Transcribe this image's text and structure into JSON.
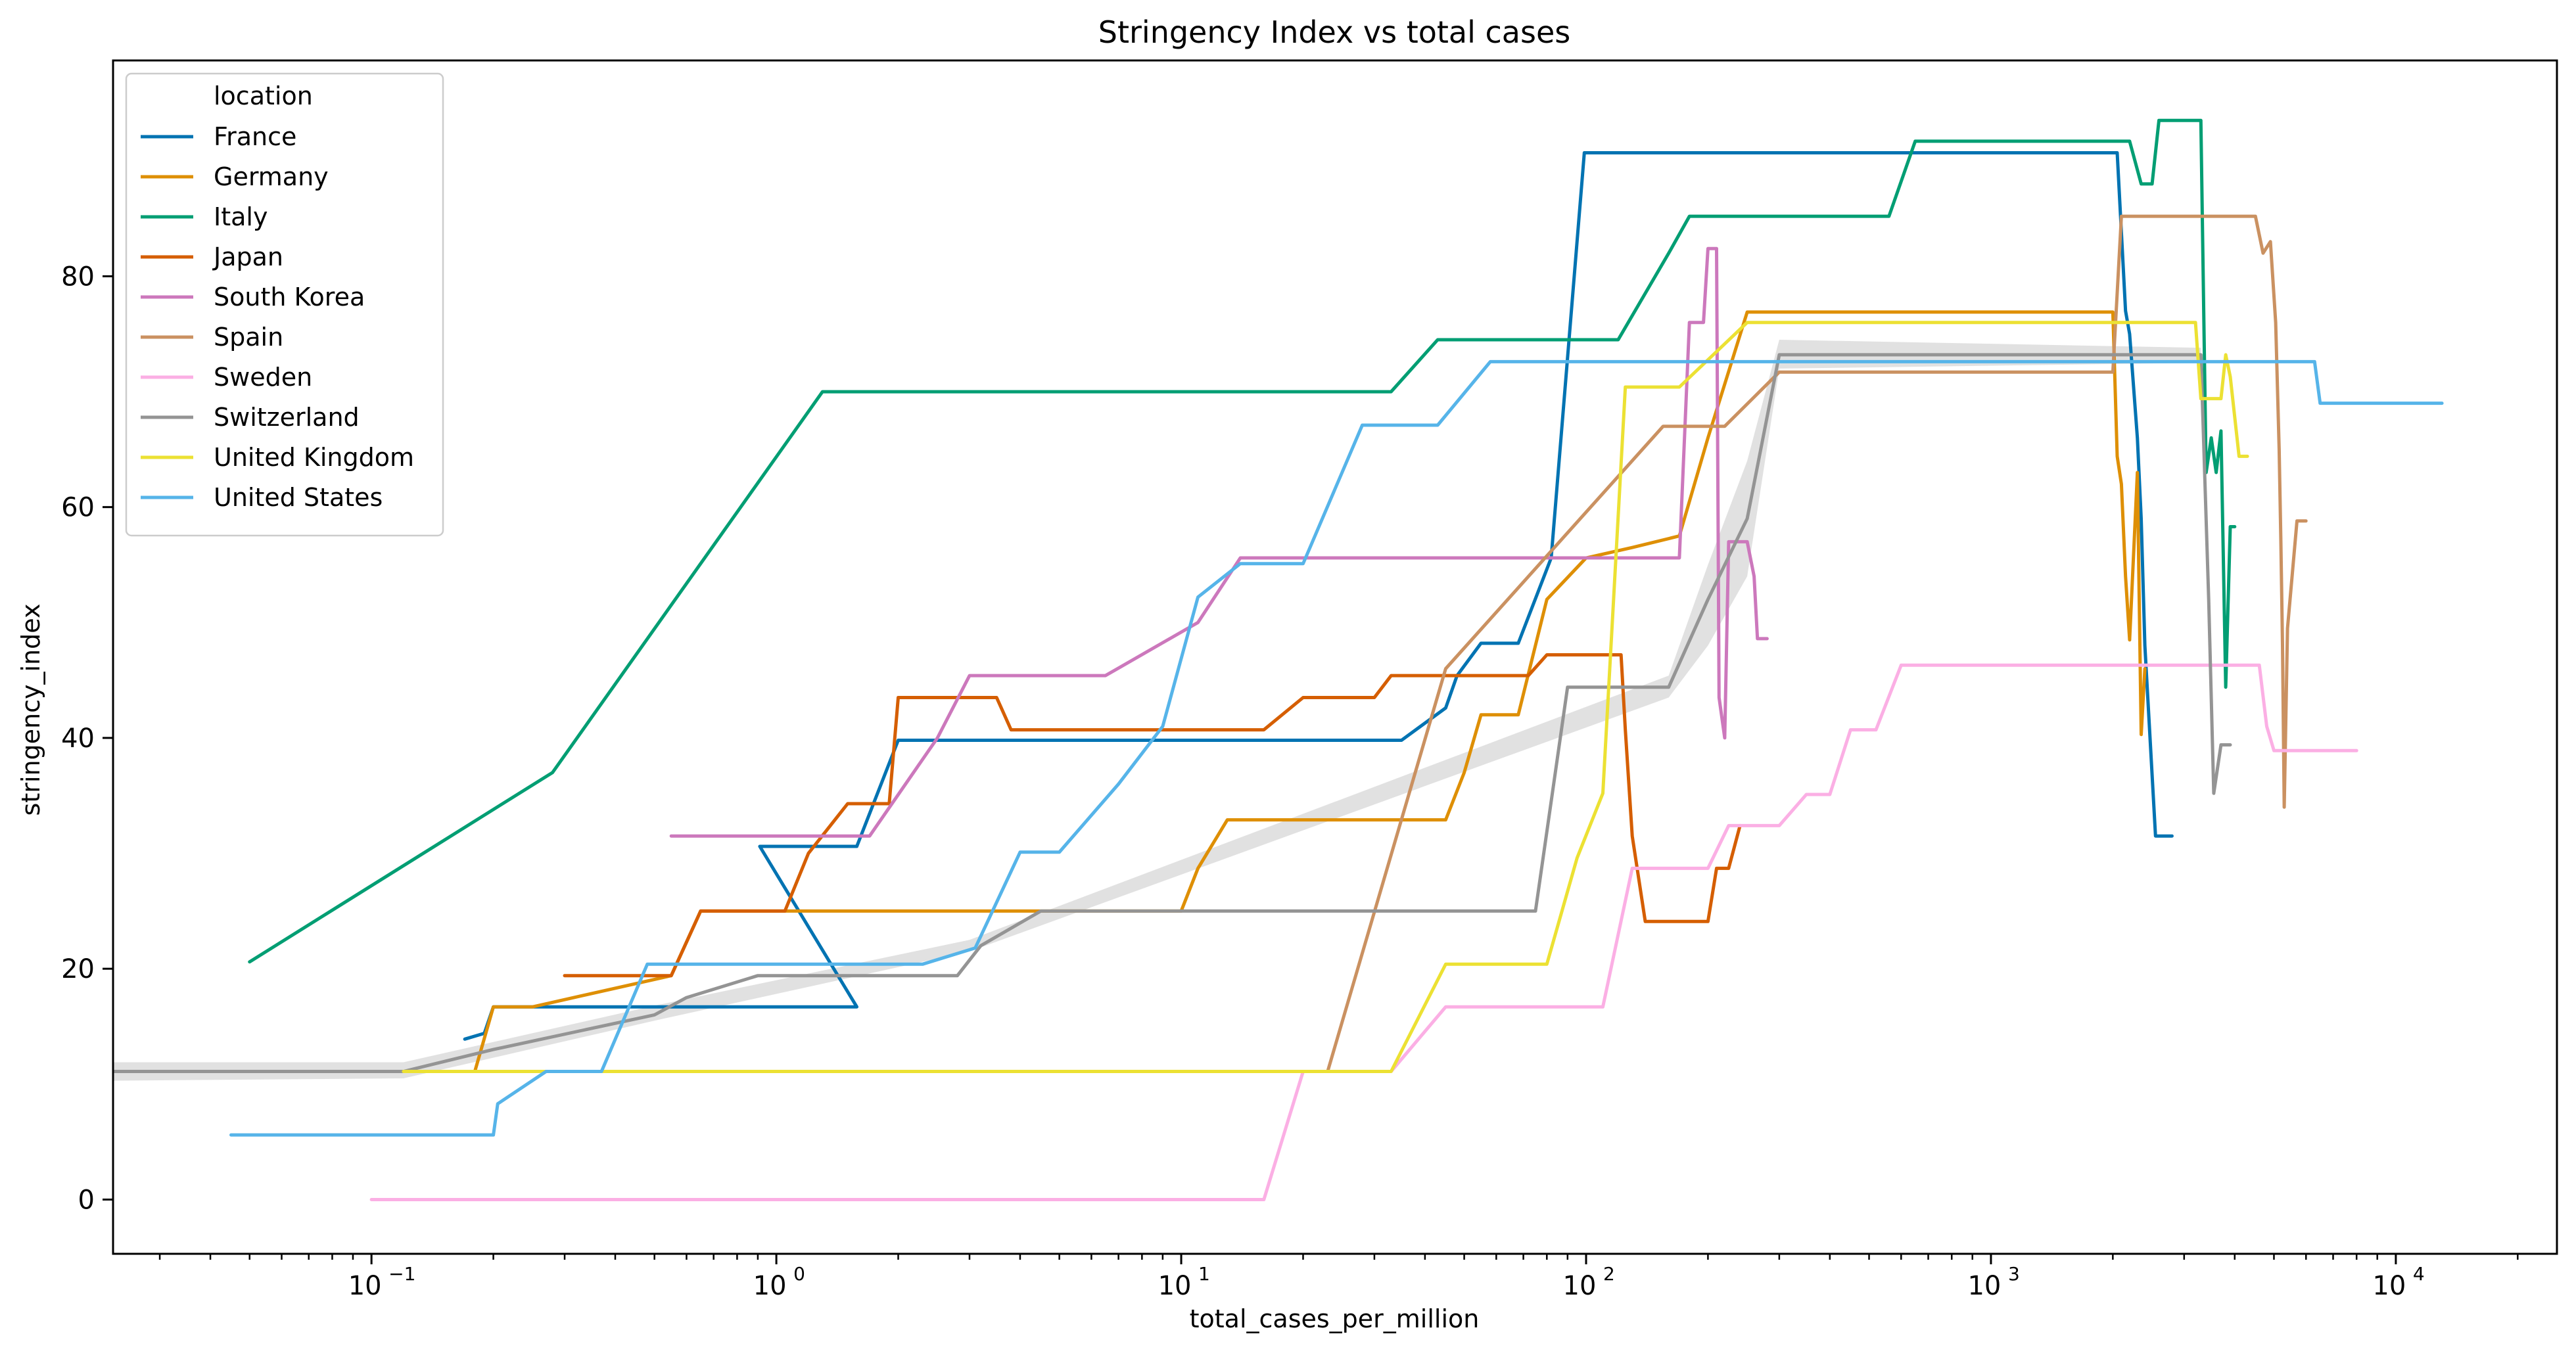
{
  "chart_data": {
    "type": "line",
    "title": "Stringency Index vs total cases",
    "xlabel": "total_cases_per_million",
    "ylabel": "stringency_index",
    "xscale": "log",
    "xlim": [
      0.023,
      25000
    ],
    "ylim": [
      -4.7,
      98.7
    ],
    "x_ticks": [
      {
        "value": 0.1,
        "base": "10",
        "exp": "−1"
      },
      {
        "value": 1,
        "base": "10",
        "exp": "0"
      },
      {
        "value": 10,
        "base": "10",
        "exp": "1"
      },
      {
        "value": 100,
        "base": "10",
        "exp": "2"
      },
      {
        "value": 1000,
        "base": "10",
        "exp": "3"
      },
      {
        "value": 10000,
        "base": "10",
        "exp": "4"
      }
    ],
    "y_ticks": [
      0,
      20,
      40,
      60,
      80
    ],
    "grid": false,
    "legend": {
      "title": "location",
      "placement": "top-left"
    },
    "series": [
      {
        "name": "France",
        "color": "#0173b2",
        "points": [
          [
            0.17,
            13.9
          ],
          [
            0.19,
            14.4
          ],
          [
            0.2,
            16.7
          ],
          [
            1.58,
            16.7
          ],
          [
            0.91,
            30.6
          ],
          [
            1.58,
            30.6
          ],
          [
            2,
            39.8
          ],
          [
            35,
            39.8
          ],
          [
            45,
            42.6
          ],
          [
            48,
            45.4
          ],
          [
            55,
            48.2
          ],
          [
            68,
            48.2
          ],
          [
            82,
            55.6
          ],
          [
            99,
            90.7
          ],
          [
            2050,
            90.7
          ],
          [
            2150,
            77.0
          ],
          [
            2200,
            75.0
          ],
          [
            2300,
            66.0
          ],
          [
            2350,
            59.0
          ],
          [
            2400,
            48.0
          ],
          [
            2550,
            31.5
          ],
          [
            2800,
            31.5
          ]
        ]
      },
      {
        "name": "Germany",
        "color": "#de8f05",
        "points": [
          [
            0.18,
            11.1
          ],
          [
            0.2,
            16.7
          ],
          [
            0.25,
            16.7
          ],
          [
            0.55,
            19.4
          ],
          [
            0.65,
            25.0
          ],
          [
            3.3,
            25.0
          ],
          [
            10,
            25.0
          ],
          [
            11,
            28.7
          ],
          [
            13,
            32.9
          ],
          [
            45,
            32.9
          ],
          [
            50,
            37.0
          ],
          [
            55,
            42.0
          ],
          [
            68,
            42.0
          ],
          [
            80,
            52.0
          ],
          [
            100,
            55.6
          ],
          [
            130,
            56.5
          ],
          [
            170,
            57.5
          ],
          [
            200,
            66.0
          ],
          [
            250,
            76.9
          ],
          [
            2000,
            76.9
          ],
          [
            2050,
            64.4
          ],
          [
            2100,
            62.0
          ],
          [
            2150,
            54.0
          ],
          [
            2200,
            48.5
          ],
          [
            2300,
            63.0
          ],
          [
            2350,
            40.3
          ],
          [
            2400,
            46.0
          ]
        ]
      },
      {
        "name": "Italy",
        "color": "#029e73",
        "points": [
          [
            0.05,
            20.6
          ],
          [
            0.28,
            37.0
          ],
          [
            1.3,
            70.0
          ],
          [
            33,
            70.0
          ],
          [
            43,
            74.5
          ],
          [
            120,
            74.5
          ],
          [
            160,
            82.0
          ],
          [
            180,
            85.2
          ],
          [
            560,
            85.2
          ],
          [
            650,
            91.7
          ],
          [
            2200,
            91.7
          ],
          [
            2350,
            88.0
          ],
          [
            2500,
            88.0
          ],
          [
            2600,
            93.5
          ],
          [
            3300,
            93.5
          ],
          [
            3400,
            63.0
          ],
          [
            3500,
            66.0
          ],
          [
            3600,
            63.0
          ],
          [
            3700,
            66.6
          ],
          [
            3800,
            44.4
          ],
          [
            3900,
            58.3
          ],
          [
            4000,
            58.3
          ]
        ]
      },
      {
        "name": "Japan",
        "color": "#d55e00",
        "points": [
          [
            0.3,
            19.4
          ],
          [
            0.55,
            19.4
          ],
          [
            0.65,
            25.0
          ],
          [
            1.05,
            25.0
          ],
          [
            1.2,
            30.0
          ],
          [
            1.5,
            34.3
          ],
          [
            1.9,
            34.3
          ],
          [
            2,
            43.5
          ],
          [
            3.5,
            43.5
          ],
          [
            3.8,
            40.7
          ],
          [
            16,
            40.7
          ],
          [
            20,
            43.5
          ],
          [
            30,
            43.5
          ],
          [
            33,
            45.4
          ],
          [
            72,
            45.4
          ],
          [
            80,
            47.2
          ],
          [
            122,
            47.2
          ],
          [
            125,
            40.7
          ],
          [
            130,
            31.5
          ],
          [
            140,
            24.1
          ],
          [
            200,
            24.1
          ],
          [
            210,
            28.7
          ],
          [
            225,
            28.7
          ],
          [
            240,
            32.4
          ]
        ]
      },
      {
        "name": "South Korea",
        "color": "#cc78bc",
        "points": [
          [
            0.55,
            31.5
          ],
          [
            1.7,
            31.5
          ],
          [
            2.5,
            40.0
          ],
          [
            3,
            45.4
          ],
          [
            6.5,
            45.4
          ],
          [
            11,
            50.0
          ],
          [
            14,
            55.6
          ],
          [
            170,
            55.6
          ],
          [
            180,
            76.0
          ],
          [
            195,
            76.0
          ],
          [
            200,
            82.4
          ],
          [
            210,
            82.4
          ],
          [
            213,
            43.5
          ],
          [
            220,
            40.0
          ],
          [
            225,
            57.0
          ],
          [
            250,
            57.0
          ],
          [
            260,
            54.0
          ],
          [
            265,
            48.6
          ],
          [
            280,
            48.6
          ]
        ]
      },
      {
        "name": "Spain",
        "color": "#ca9161",
        "points": [
          [
            0.12,
            11.1
          ],
          [
            23,
            11.1
          ],
          [
            45,
            46.0
          ],
          [
            155,
            67.0
          ],
          [
            180,
            67.0
          ],
          [
            220,
            67.0
          ],
          [
            300,
            71.7
          ],
          [
            2000,
            71.7
          ],
          [
            2100,
            85.2
          ],
          [
            4500,
            85.2
          ],
          [
            4700,
            82.0
          ],
          [
            4900,
            83.0
          ],
          [
            5050,
            76.0
          ],
          [
            5150,
            65.0
          ],
          [
            5200,
            57.0
          ],
          [
            5250,
            48.0
          ],
          [
            5300,
            34.0
          ],
          [
            5400,
            49.5
          ],
          [
            5700,
            58.8
          ],
          [
            6000,
            58.8
          ]
        ]
      },
      {
        "name": "Sweden",
        "color": "#fbafe4",
        "points": [
          [
            0.1,
            0.0
          ],
          [
            16,
            0.0
          ],
          [
            20,
            11.1
          ],
          [
            33,
            11.1
          ],
          [
            45,
            16.7
          ],
          [
            100,
            16.7
          ],
          [
            110,
            16.7
          ],
          [
            130,
            28.7
          ],
          [
            200,
            28.7
          ],
          [
            225,
            32.4
          ],
          [
            300,
            32.4
          ],
          [
            350,
            35.1
          ],
          [
            400,
            35.1
          ],
          [
            450,
            40.7
          ],
          [
            520,
            40.7
          ],
          [
            600,
            46.3
          ],
          [
            4600,
            46.3
          ],
          [
            4800,
            41.0
          ],
          [
            5000,
            38.9
          ],
          [
            8000,
            38.9
          ]
        ]
      },
      {
        "name": "Switzerland",
        "color": "#949494",
        "points": [
          [
            0.023,
            11.1
          ],
          [
            0.12,
            11.1
          ],
          [
            0.2,
            13.0
          ],
          [
            0.5,
            16.0
          ],
          [
            0.6,
            17.5
          ],
          [
            0.9,
            19.4
          ],
          [
            2.8,
            19.4
          ],
          [
            3.2,
            22.0
          ],
          [
            4.5,
            25.0
          ],
          [
            75,
            25.0
          ],
          [
            90,
            44.4
          ],
          [
            160,
            44.4
          ],
          [
            200,
            52.0
          ],
          [
            250,
            59.0
          ],
          [
            300,
            73.2
          ],
          [
            3300,
            73.2
          ],
          [
            3450,
            52.0
          ],
          [
            3550,
            35.2
          ],
          [
            3700,
            39.4
          ],
          [
            3900,
            39.4
          ]
        ]
      },
      {
        "name": "United Kingdom",
        "color": "#ece133",
        "points": [
          [
            0.12,
            11.1
          ],
          [
            33,
            11.1
          ],
          [
            45,
            20.4
          ],
          [
            80,
            20.4
          ],
          [
            95,
            29.6
          ],
          [
            110,
            35.2
          ],
          [
            125,
            70.4
          ],
          [
            170,
            70.4
          ],
          [
            250,
            76.0
          ],
          [
            3200,
            76.0
          ],
          [
            3300,
            69.4
          ],
          [
            3700,
            69.4
          ],
          [
            3800,
            73.2
          ],
          [
            3900,
            71.3
          ],
          [
            4100,
            64.4
          ],
          [
            4300,
            64.4
          ]
        ]
      },
      {
        "name": "United States",
        "color": "#56b4e9",
        "points": [
          [
            0.045,
            5.6
          ],
          [
            0.2,
            5.6
          ],
          [
            0.205,
            8.3
          ],
          [
            0.27,
            11.1
          ],
          [
            0.37,
            11.1
          ],
          [
            0.48,
            20.4
          ],
          [
            2.3,
            20.4
          ],
          [
            3.1,
            21.8
          ],
          [
            4,
            30.1
          ],
          [
            5,
            30.1
          ],
          [
            7,
            36.0
          ],
          [
            9,
            41.0
          ],
          [
            11,
            52.2
          ],
          [
            14,
            55.1
          ],
          [
            20,
            55.1
          ],
          [
            28,
            67.1
          ],
          [
            43,
            67.1
          ],
          [
            58,
            72.6
          ],
          [
            6300,
            72.6
          ],
          [
            6500,
            69.0
          ],
          [
            13000,
            69.0
          ]
        ]
      }
    ],
    "confidence_band": [
      {
        "x": 0.023,
        "lo": 10.3,
        "hi": 11.9
      },
      {
        "x": 0.12,
        "lo": 10.5,
        "hi": 11.9
      },
      {
        "x": 0.5,
        "lo": 15.5,
        "hi": 16.8
      },
      {
        "x": 3,
        "lo": 21.5,
        "hi": 22.5
      },
      {
        "x": 160,
        "lo": 43.5,
        "hi": 45.4
      },
      {
        "x": 200,
        "lo": 48.0,
        "hi": 55.0
      },
      {
        "x": 250,
        "lo": 54.0,
        "hi": 64.0
      },
      {
        "x": 300,
        "lo": 72.0,
        "hi": 74.5
      },
      {
        "x": 3300,
        "lo": 72.5,
        "hi": 73.8
      }
    ]
  }
}
